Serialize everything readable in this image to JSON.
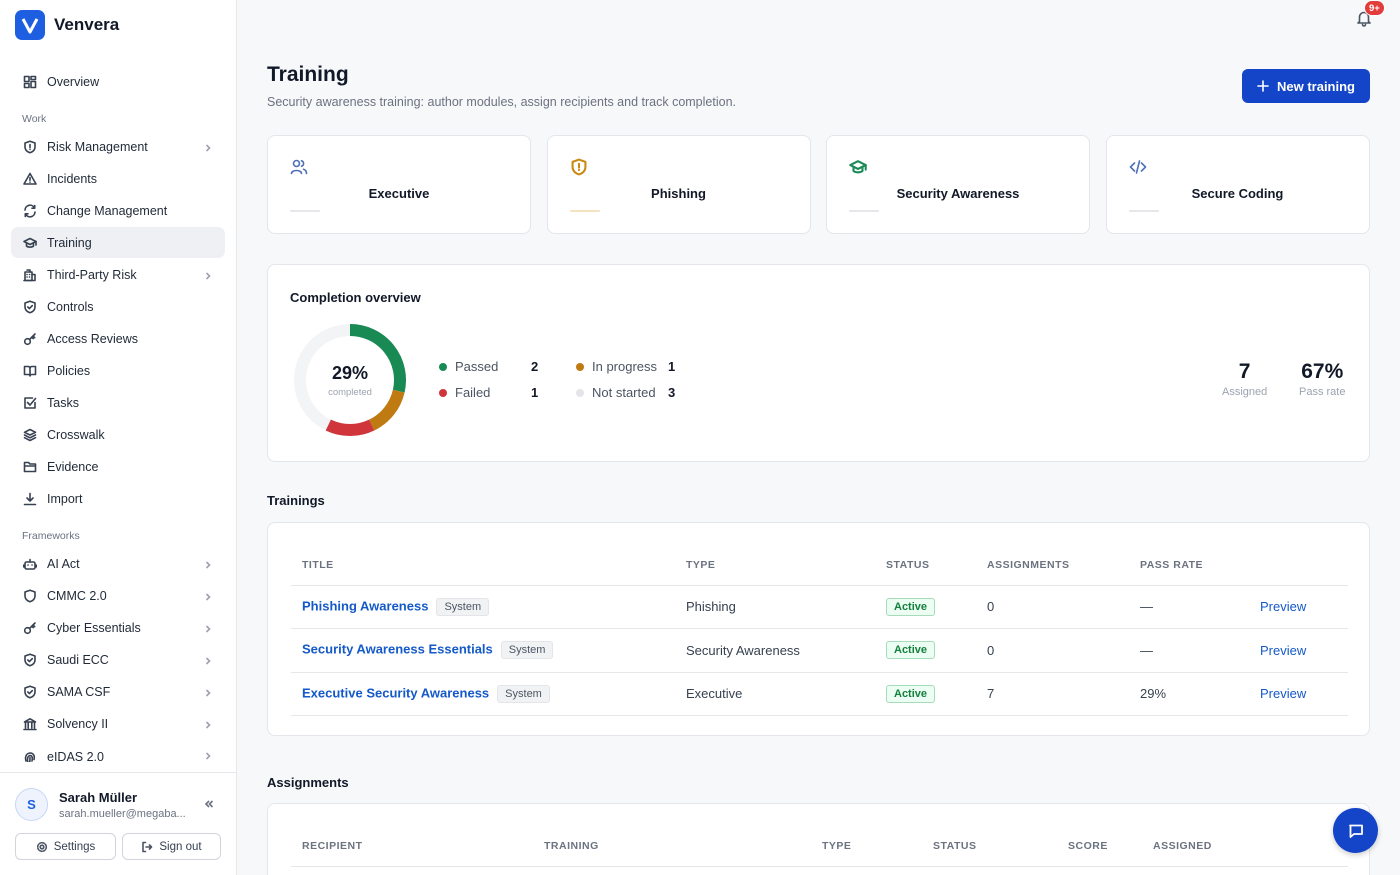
{
  "app": {
    "name": "Venvera",
    "logo_letter": "V"
  },
  "sidebar": {
    "top_items": [
      {
        "label": "Overview",
        "icon": "grid-icon",
        "chevron": false
      }
    ],
    "work_label": "Work",
    "work_items": [
      {
        "label": "Risk Management",
        "icon": "shield-alert-icon",
        "chevron": true
      },
      {
        "label": "Incidents",
        "icon": "warning-icon",
        "chevron": false
      },
      {
        "label": "Change Management",
        "icon": "refresh-icon",
        "chevron": false
      },
      {
        "label": "Training",
        "icon": "graduation-cap-icon",
        "chevron": false,
        "active": true
      },
      {
        "label": "Third-Party Risk",
        "icon": "building-icon",
        "chevron": true
      },
      {
        "label": "Controls",
        "icon": "shield-check-icon",
        "chevron": false
      },
      {
        "label": "Access Reviews",
        "icon": "key-icon",
        "chevron": false
      },
      {
        "label": "Policies",
        "icon": "book-icon",
        "chevron": false
      },
      {
        "label": "Tasks",
        "icon": "checkbox-icon",
        "chevron": false
      },
      {
        "label": "Crosswalk",
        "icon": "layers-icon",
        "chevron": false
      },
      {
        "label": "Evidence",
        "icon": "folder-icon",
        "chevron": false
      },
      {
        "label": "Import",
        "icon": "download-icon",
        "chevron": false
      }
    ],
    "frameworks_label": "Frameworks",
    "framework_items": [
      {
        "label": "AI Act",
        "icon": "robot-icon",
        "chevron": true
      },
      {
        "label": "CMMC 2.0",
        "icon": "shield-icon",
        "chevron": true
      },
      {
        "label": "Cyber Essentials",
        "icon": "key-icon",
        "chevron": true
      },
      {
        "label": "Saudi ECC",
        "icon": "shield-check-icon",
        "chevron": true
      },
      {
        "label": "SAMA CSF",
        "icon": "shield-check-icon",
        "chevron": true
      },
      {
        "label": "Solvency II",
        "icon": "bank-icon",
        "chevron": true
      },
      {
        "label": "eIDAS 2.0",
        "icon": "fingerprint-icon",
        "chevron": true
      }
    ],
    "user": {
      "initial": "S",
      "name": "Sarah Müller",
      "email": "sarah.mueller@megaba..."
    },
    "settings_label": "Settings",
    "signout_label": "Sign out"
  },
  "header": {
    "notification_badge": "9+",
    "title": "Training",
    "subtitle": "Security awareness training: author modules, assign recipients and track completion.",
    "new_button": "New training"
  },
  "categories": [
    {
      "name": "Executive",
      "icon": "users-icon",
      "color": "#4f6fb8",
      "bar": "#e5e7eb"
    },
    {
      "name": "Phishing",
      "icon": "shield-alert-icon",
      "color": "#c98a12",
      "bar": "#f3e3c0"
    },
    {
      "name": "Security Awareness",
      "icon": "graduation-cap-icon",
      "color": "#178a55",
      "bar": "#e5e7eb"
    },
    {
      "name": "Secure Coding",
      "icon": "code-icon",
      "color": "#4f6fb8",
      "bar": "#e5e7eb"
    }
  ],
  "completion": {
    "title": "Completion overview",
    "percent_text": "29%",
    "percent_label": "completed",
    "legend": [
      {
        "label": "Passed",
        "value": "2",
        "color": "#1a8a55",
        "count": 2
      },
      {
        "label": "Failed",
        "value": "1",
        "color": "#d0353b",
        "count": 1
      },
      {
        "label": "In progress",
        "value": "1",
        "color": "#c07a12",
        "count": 1
      },
      {
        "label": "Not started",
        "value": "3",
        "color": "#e3e5e8",
        "count": 3
      }
    ],
    "assigned_value": "7",
    "assigned_label": "Assigned",
    "pass_rate_value": "67%",
    "pass_rate_label": "Pass rate"
  },
  "trainings": {
    "title": "Trainings",
    "columns": [
      "TITLE",
      "TYPE",
      "STATUS",
      "ASSIGNMENTS",
      "PASS RATE"
    ],
    "rows": [
      {
        "title": "Phishing Awareness",
        "tag": "System",
        "type": "Phishing",
        "status": "Active",
        "assignments": "0",
        "pass_rate": "—",
        "action": "Preview"
      },
      {
        "title": "Security Awareness Essentials",
        "tag": "System",
        "type": "Security Awareness",
        "status": "Active",
        "assignments": "0",
        "pass_rate": "—",
        "action": "Preview"
      },
      {
        "title": "Executive Security Awareness",
        "tag": "System",
        "type": "Executive",
        "status": "Active",
        "assignments": "7",
        "pass_rate": "29%",
        "action": "Preview"
      }
    ]
  },
  "assignments": {
    "title": "Assignments",
    "columns": [
      "RECIPIENT",
      "TRAINING",
      "TYPE",
      "STATUS",
      "SCORE",
      "ASSIGNED"
    ]
  }
}
